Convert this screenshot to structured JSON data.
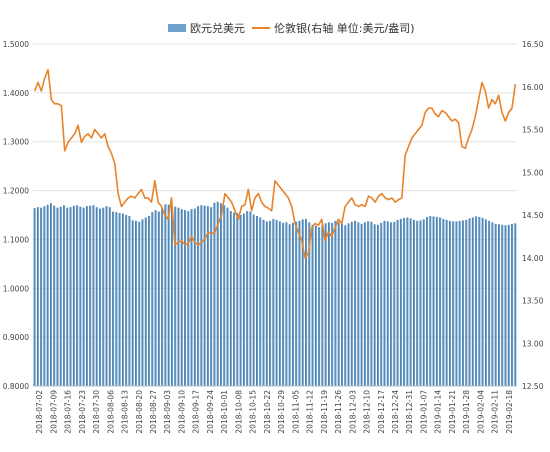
{
  "chart_data": {
    "type": "bar+line",
    "colors": {
      "bar": "#6FA3CD",
      "bar_dark": "#3F77A8",
      "line": "#E8832A",
      "grid": "#e3e3e3",
      "axis_text": "#444444"
    },
    "legend": [
      {
        "name": "欧元兑美元",
        "kind": "bar"
      },
      {
        "name": "伦敦银(右轴 单位:美元/盎司)",
        "kind": "line"
      }
    ],
    "y_left": {
      "ylim": [
        0.8,
        1.5
      ],
      "ticks": [
        "0.8000",
        "0.9000",
        "1.0000",
        "1.1000",
        "1.2000",
        "1.3000",
        "1.4000",
        "1.5000"
      ]
    },
    "y_right": {
      "ylim": [
        12.5,
        16.5
      ],
      "ticks": [
        "12.50",
        "13.00",
        "13.50",
        "14.00",
        "14.50",
        "15.00",
        "15.50",
        "16.00",
        "16.50"
      ]
    },
    "x_tick_labels": [
      "2018-07-02",
      "2018-07-09",
      "2018-07-16",
      "2018-07-23",
      "2018-07-30",
      "2018-08-06",
      "2018-08-13",
      "2018-08-20",
      "2018-08-27",
      "2018-09-03",
      "2018-09-10",
      "2018-09-17",
      "2018-09-24",
      "2018-10-01",
      "2018-10-08",
      "2018-10-15",
      "2018-10-22",
      "2018-10-29",
      "2018-11-05",
      "2018-11-12",
      "2018-11-19",
      "2018-11-26",
      "2018-12-03",
      "2018-12-10",
      "2018-12-17",
      "2018-12-24",
      "2018-12-31",
      "2019-01-07",
      "2019-01-14",
      "2019-01-21",
      "2019-01-28",
      "2019-02-04",
      "2019-02-11",
      "2019-02-18"
    ],
    "series": [
      {
        "name": "欧元兑美元",
        "axis": "left",
        "values": [
          1.164,
          1.166,
          1.165,
          1.168,
          1.171,
          1.174,
          1.169,
          1.165,
          1.167,
          1.17,
          1.165,
          1.166,
          1.169,
          1.17,
          1.167,
          1.165,
          1.168,
          1.169,
          1.17,
          1.166,
          1.163,
          1.165,
          1.168,
          1.166,
          1.157,
          1.156,
          1.154,
          1.153,
          1.15,
          1.148,
          1.139,
          1.138,
          1.136,
          1.141,
          1.145,
          1.148,
          1.156,
          1.16,
          1.157,
          1.164,
          1.172,
          1.171,
          1.168,
          1.167,
          1.165,
          1.162,
          1.16,
          1.158,
          1.162,
          1.163,
          1.168,
          1.17,
          1.169,
          1.168,
          1.166,
          1.175,
          1.177,
          1.174,
          1.17,
          1.165,
          1.158,
          1.155,
          1.154,
          1.15,
          1.153,
          1.158,
          1.157,
          1.151,
          1.148,
          1.145,
          1.14,
          1.137,
          1.138,
          1.142,
          1.14,
          1.137,
          1.134,
          1.135,
          1.131,
          1.134,
          1.136,
          1.138,
          1.141,
          1.142,
          1.135,
          1.13,
          1.128,
          1.125,
          1.13,
          1.133,
          1.135,
          1.134,
          1.138,
          1.135,
          1.132,
          1.129,
          1.133,
          1.136,
          1.138,
          1.135,
          1.132,
          1.135,
          1.137,
          1.136,
          1.131,
          1.13,
          1.134,
          1.138,
          1.137,
          1.135,
          1.136,
          1.14,
          1.142,
          1.144,
          1.145,
          1.143,
          1.14,
          1.138,
          1.139,
          1.141,
          1.146,
          1.148,
          1.147,
          1.146,
          1.145,
          1.142,
          1.14,
          1.138,
          1.137,
          1.137,
          1.138,
          1.139,
          1.14,
          1.143,
          1.145,
          1.147,
          1.146,
          1.144,
          1.141,
          1.138,
          1.135,
          1.132,
          1.131,
          1.13,
          1.129,
          1.13,
          1.132,
          1.133
        ]
      },
      {
        "name": "伦敦银(右轴 单位:美元/盎司)",
        "axis": "right",
        "values": [
          15.95,
          16.05,
          15.95,
          16.1,
          16.2,
          15.85,
          15.8,
          15.8,
          15.78,
          15.25,
          15.35,
          15.4,
          15.45,
          15.55,
          15.35,
          15.42,
          15.45,
          15.4,
          15.5,
          15.45,
          15.4,
          15.45,
          15.3,
          15.22,
          15.1,
          14.75,
          14.6,
          14.65,
          14.7,
          14.72,
          14.7,
          14.75,
          14.8,
          14.7,
          14.7,
          14.65,
          14.9,
          14.65,
          14.6,
          14.5,
          14.45,
          14.7,
          14.15,
          14.18,
          14.2,
          14.15,
          14.17,
          14.25,
          14.18,
          14.15,
          14.18,
          14.22,
          14.3,
          14.28,
          14.3,
          14.4,
          14.5,
          14.75,
          14.7,
          14.65,
          14.55,
          14.45,
          14.6,
          14.62,
          14.8,
          14.55,
          14.7,
          14.75,
          14.65,
          14.6,
          14.58,
          14.55,
          14.9,
          14.85,
          14.8,
          14.75,
          14.7,
          14.6,
          14.4,
          14.3,
          14.2,
          14.0,
          14.05,
          14.35,
          14.4,
          14.38,
          14.45,
          14.2,
          14.3,
          14.25,
          14.35,
          14.45,
          14.4,
          14.6,
          14.65,
          14.7,
          14.62,
          14.6,
          14.62,
          14.6,
          14.72,
          14.7,
          14.65,
          14.72,
          14.75,
          14.7,
          14.68,
          14.7,
          14.65,
          14.68,
          14.7,
          15.2,
          15.3,
          15.4,
          15.45,
          15.5,
          15.55,
          15.7,
          15.75,
          15.75,
          15.68,
          15.65,
          15.72,
          15.7,
          15.65,
          15.6,
          15.62,
          15.58,
          15.3,
          15.28,
          15.4,
          15.5,
          15.65,
          15.85,
          16.05,
          15.95,
          15.75,
          15.85,
          15.8,
          15.9,
          15.7,
          15.6,
          15.7,
          15.75,
          16.03
        ]
      }
    ]
  }
}
